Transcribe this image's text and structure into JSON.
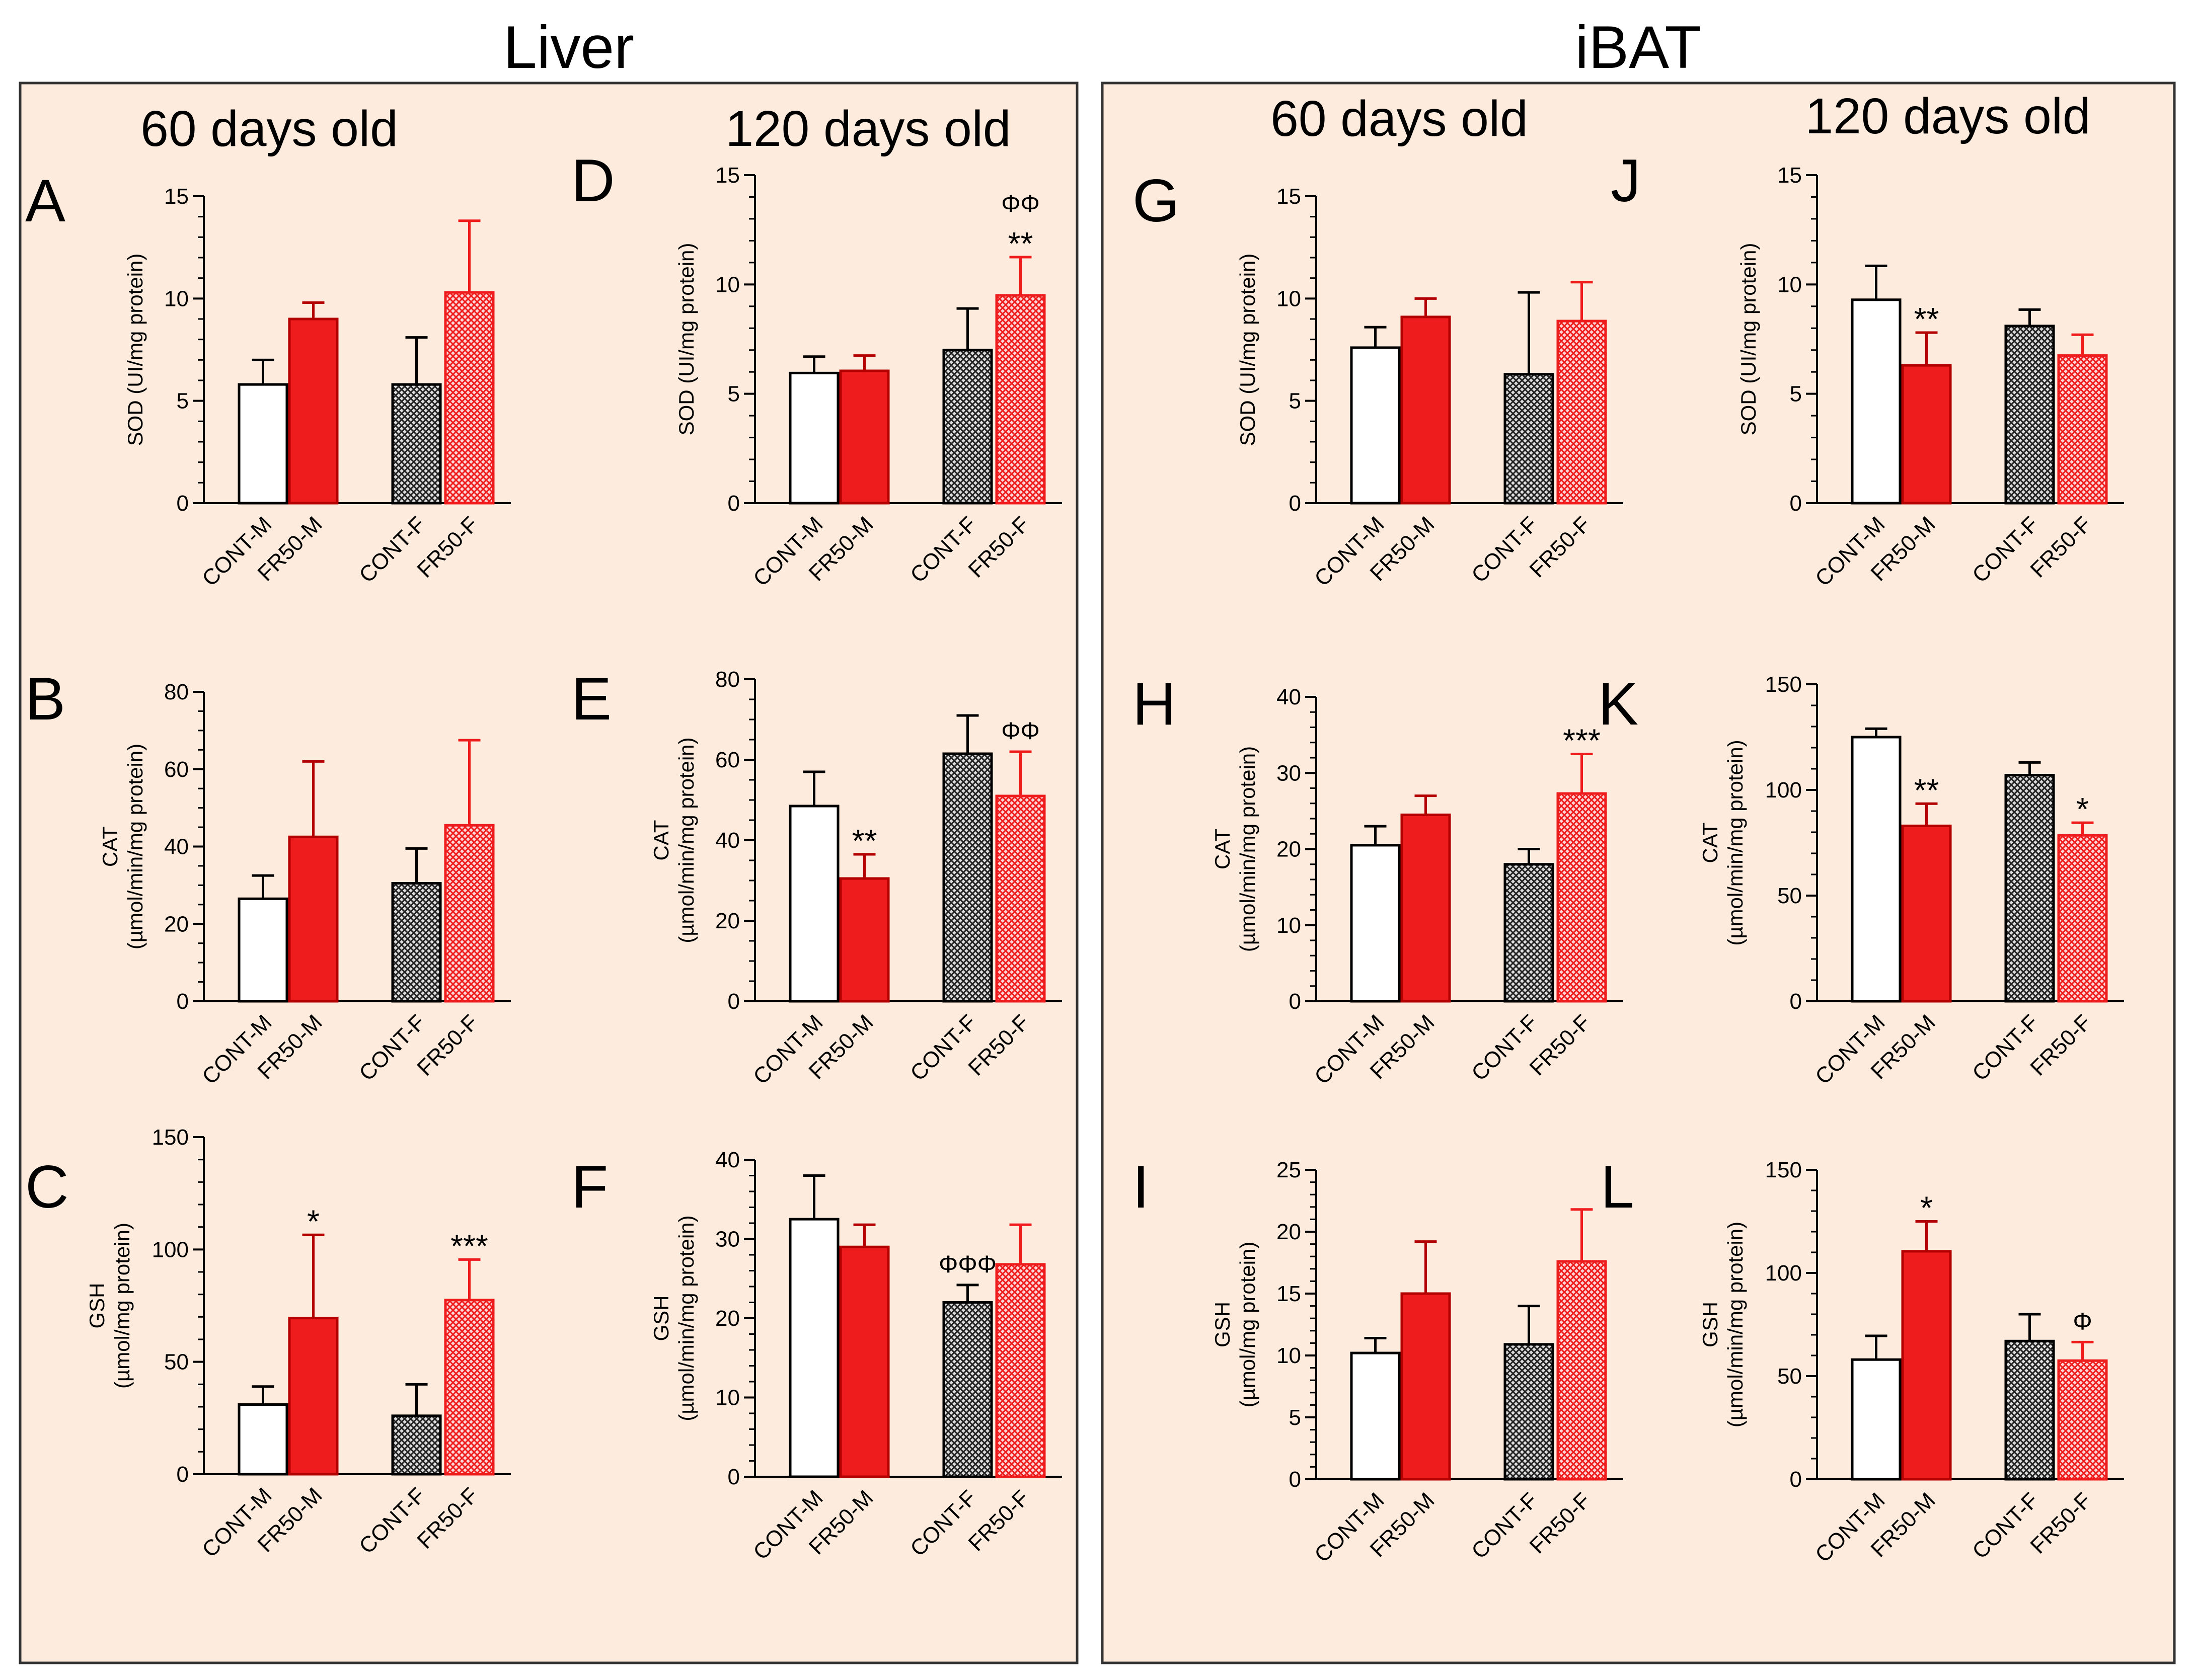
{
  "sections": [
    {
      "title": "Liver",
      "columns": [
        "60 days old",
        "120 days old"
      ]
    },
    {
      "title": "iBAT",
      "columns": [
        "60 days old",
        "120 days old"
      ]
    }
  ],
  "colors": {
    "background": "#fdebdd",
    "border": "#333333",
    "red": "#ee1c1c",
    "dark_red": "#b30000",
    "white": "#ffffff",
    "black": "#000000",
    "gray_hatch": "#555555"
  },
  "chart_data": [
    {
      "panel": "A",
      "type": "bar",
      "section": "Liver",
      "age": "60 days old",
      "ylabel_lines": [
        "SOD (UI/mg protein)"
      ],
      "ylim": [
        0,
        15
      ],
      "ticks": [
        0,
        5,
        10,
        15
      ],
      "minor_step": 1,
      "categories": [
        "CONT-M",
        "FR50-M",
        "CONT-F",
        "FR50-F"
      ],
      "values": [
        5.8,
        9.0,
        5.8,
        10.3
      ],
      "errors": [
        1.2,
        0.8,
        2.3,
        3.5
      ],
      "annotations": [
        {
          "bar": 1,
          "stars": "",
          "phi": ""
        },
        {
          "bar": 3,
          "stars": "",
          "phi": ""
        }
      ]
    },
    {
      "panel": "B",
      "type": "bar",
      "section": "Liver",
      "age": "60 days old",
      "ylabel_lines": [
        "CAT",
        "(µmol/min/mg protein)"
      ],
      "ylim": [
        0,
        80
      ],
      "ticks": [
        0,
        20,
        40,
        60,
        80
      ],
      "minor_step": 5,
      "categories": [
        "CONT-M",
        "FR50-M",
        "CONT-F",
        "FR50-F"
      ],
      "values": [
        26.5,
        42.5,
        30.5,
        45.5
      ],
      "errors": [
        6,
        19.5,
        9,
        22
      ],
      "annotations": []
    },
    {
      "panel": "C",
      "type": "bar",
      "section": "Liver",
      "age": "60 days old",
      "ylabel_lines": [
        "GSH",
        "(µmol/mg protein)"
      ],
      "ylim": [
        0,
        150
      ],
      "ticks": [
        0,
        50,
        100,
        150
      ],
      "minor_step": 10,
      "categories": [
        "CONT-M",
        "FR50-M",
        "CONT-F",
        "FR50-F"
      ],
      "values": [
        31,
        69.5,
        26,
        77.5
      ],
      "errors": [
        8,
        37,
        14,
        18
      ],
      "annotations": [
        {
          "bar": 1,
          "stars": "*",
          "phi": ""
        },
        {
          "bar": 3,
          "stars": "***",
          "phi": ""
        }
      ]
    },
    {
      "panel": "D",
      "type": "bar",
      "section": "Liver",
      "age": "120 days old",
      "ylabel_lines": [
        "SOD (UI/mg protein)"
      ],
      "ylim": [
        0,
        15
      ],
      "ticks": [
        0,
        5,
        10,
        15
      ],
      "minor_step": 1,
      "categories": [
        "CONT-M",
        "FR50-M",
        "CONT-F",
        "FR50-F"
      ],
      "values": [
        5.95,
        6.05,
        7.0,
        9.5
      ],
      "errors": [
        0.75,
        0.7,
        1.9,
        1.75
      ],
      "annotations": [
        {
          "bar": 3,
          "stars": "**",
          "phi": "ΦΦ"
        }
      ]
    },
    {
      "panel": "E",
      "type": "bar",
      "section": "Liver",
      "age": "120 days old",
      "ylabel_lines": [
        "CAT",
        "(µmol/min/mg protein)"
      ],
      "ylim": [
        0,
        80
      ],
      "ticks": [
        0,
        20,
        40,
        60,
        80
      ],
      "minor_step": 5,
      "categories": [
        "CONT-M",
        "FR50-M",
        "CONT-F",
        "FR50-F"
      ],
      "values": [
        48.5,
        30.5,
        61.5,
        51
      ],
      "errors": [
        8.5,
        6,
        9.5,
        11
      ],
      "annotations": [
        {
          "bar": 1,
          "stars": "**",
          "phi": ""
        },
        {
          "bar": 3,
          "stars": "",
          "phi": "ΦΦ"
        }
      ]
    },
    {
      "panel": "F",
      "type": "bar",
      "section": "Liver",
      "age": "120 days old",
      "ylabel_lines": [
        "GSH",
        "(µmol/min/mg protein)"
      ],
      "ylim": [
        0,
        40
      ],
      "ticks": [
        0,
        10,
        20,
        30,
        40
      ],
      "minor_step": 2,
      "categories": [
        "CONT-M",
        "FR50-M",
        "CONT-F",
        "FR50-F"
      ],
      "values": [
        32.5,
        29,
        22,
        26.8
      ],
      "errors": [
        5.5,
        2.8,
        2.2,
        5
      ],
      "annotations": [
        {
          "bar": 2,
          "stars": "",
          "phi": "ΦΦΦ"
        }
      ]
    },
    {
      "panel": "G",
      "type": "bar",
      "section": "iBAT",
      "age": "60 days old",
      "ylabel_lines": [
        "SOD (UI/mg protein)"
      ],
      "ylim": [
        0,
        15
      ],
      "ticks": [
        0,
        5,
        10,
        15
      ],
      "minor_step": 1,
      "categories": [
        "CONT-M",
        "FR50-M",
        "CONT-F",
        "FR50-F"
      ],
      "values": [
        7.6,
        9.1,
        6.3,
        8.9
      ],
      "errors": [
        1.0,
        0.9,
        4.0,
        1.9
      ],
      "annotations": []
    },
    {
      "panel": "H",
      "type": "bar",
      "section": "iBAT",
      "age": "60 days old",
      "ylabel_lines": [
        "CAT",
        "(µmol/min/mg protein)"
      ],
      "ylim": [
        0,
        40
      ],
      "ticks": [
        0,
        10,
        20,
        30,
        40
      ],
      "minor_step": 2,
      "categories": [
        "CONT-M",
        "FR50-M",
        "CONT-F",
        "FR50-F"
      ],
      "values": [
        20.5,
        24.5,
        18,
        27.3
      ],
      "errors": [
        2.5,
        2.5,
        2,
        5.2
      ],
      "annotations": [
        {
          "bar": 3,
          "stars": "***",
          "phi": ""
        }
      ]
    },
    {
      "panel": "I",
      "type": "bar",
      "section": "iBAT",
      "age": "60 days old",
      "ylabel_lines": [
        "GSH",
        "(µmol/mg protein)"
      ],
      "ylim": [
        0,
        25
      ],
      "ticks": [
        0,
        5,
        10,
        15,
        20,
        25
      ],
      "minor_step": 1,
      "categories": [
        "CONT-M",
        "FR50-M",
        "CONT-F",
        "FR50-F"
      ],
      "values": [
        10.2,
        15,
        10.9,
        17.6
      ],
      "errors": [
        1.2,
        4.2,
        3.1,
        4.2
      ],
      "annotations": []
    },
    {
      "panel": "J",
      "type": "bar",
      "section": "iBAT",
      "age": "120 days old",
      "ylabel_lines": [
        "SOD (UI/mg protein)"
      ],
      "ylim": [
        0,
        15
      ],
      "ticks": [
        0,
        5,
        10,
        15
      ],
      "minor_step": 1,
      "categories": [
        "CONT-M",
        "FR50-M",
        "CONT-F",
        "FR50-F"
      ],
      "values": [
        9.3,
        6.3,
        8.1,
        6.75
      ],
      "errors": [
        1.55,
        1.5,
        0.75,
        0.95
      ],
      "annotations": [
        {
          "bar": 1,
          "stars": "**",
          "phi": ""
        }
      ]
    },
    {
      "panel": "K",
      "type": "bar",
      "section": "iBAT",
      "age": "120 days old",
      "ylabel_lines": [
        "CAT",
        "(µmol/min/mg protein)"
      ],
      "ylim": [
        0,
        150
      ],
      "ticks": [
        0,
        50,
        100,
        150
      ],
      "minor_step": 10,
      "categories": [
        "CONT-M",
        "FR50-M",
        "CONT-F",
        "FR50-F"
      ],
      "values": [
        125,
        83,
        107,
        78.5
      ],
      "errors": [
        4,
        10.5,
        6,
        6
      ],
      "annotations": [
        {
          "bar": 1,
          "stars": "**",
          "phi": ""
        },
        {
          "bar": 3,
          "stars": "*",
          "phi": ""
        }
      ]
    },
    {
      "panel": "L",
      "type": "bar",
      "section": "iBAT",
      "age": "120 days old",
      "ylabel_lines": [
        "GSH",
        "(µmol/min/mg protein)"
      ],
      "ylim": [
        0,
        150
      ],
      "ticks": [
        0,
        50,
        100,
        150
      ],
      "minor_step": 10,
      "categories": [
        "CONT-M",
        "FR50-M",
        "CONT-F",
        "FR50-F"
      ],
      "values": [
        58,
        110.5,
        67,
        57.5
      ],
      "errors": [
        11.5,
        14.5,
        13,
        9
      ],
      "annotations": [
        {
          "bar": 1,
          "stars": "*",
          "phi": ""
        },
        {
          "bar": 3,
          "stars": "",
          "phi": "Φ"
        }
      ]
    }
  ]
}
